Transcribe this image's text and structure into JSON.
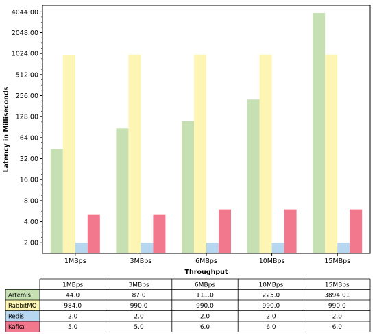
{
  "chart_data": {
    "type": "bar",
    "title": "",
    "xlabel": "Throughput",
    "ylabel": "Latency in Milliseconds",
    "y_scale": "log2",
    "ylim": [
      1.4,
      5000
    ],
    "y_ticks": [
      2,
      4,
      8,
      16,
      32,
      64,
      128,
      256,
      512,
      1024,
      2048,
      4044
    ],
    "y_tick_labels": [
      "2.00",
      "4.00",
      "8.00",
      "16.00",
      "32.00",
      "64.00",
      "128.00",
      "256.00",
      "512.00",
      "1024.00",
      "2048.00",
      "4044.00"
    ],
    "categories": [
      "1MBps",
      "3MBps",
      "6MBps",
      "10MBps",
      "15MBps"
    ],
    "series": [
      {
        "name": "Artemis",
        "color": "#c6e0b4",
        "values": [
          44.0,
          87.0,
          111.0,
          225.0,
          3894.01
        ],
        "labels": [
          "44.0",
          "87.0",
          "111.0",
          "225.0",
          "3894.01"
        ]
      },
      {
        "name": "RabbitMQ",
        "color": "#fdf5b3",
        "values": [
          984.0,
          990.0,
          990.0,
          990.0,
          990.0
        ],
        "labels": [
          "984.0",
          "990.0",
          "990.0",
          "990.0",
          "990.0"
        ]
      },
      {
        "name": "Redis",
        "color": "#b7d7f0",
        "values": [
          2.0,
          2.0,
          2.0,
          2.0,
          2.0
        ],
        "labels": [
          "2.0",
          "2.0",
          "2.0",
          "2.0",
          "2.0"
        ]
      },
      {
        "name": "Kafka",
        "color": "#f2788e",
        "values": [
          5.0,
          5.0,
          6.0,
          6.0,
          6.0
        ],
        "labels": [
          "5.0",
          "5.0",
          "6.0",
          "6.0",
          "6.0"
        ]
      }
    ],
    "grid": false,
    "legend": "table-below"
  }
}
